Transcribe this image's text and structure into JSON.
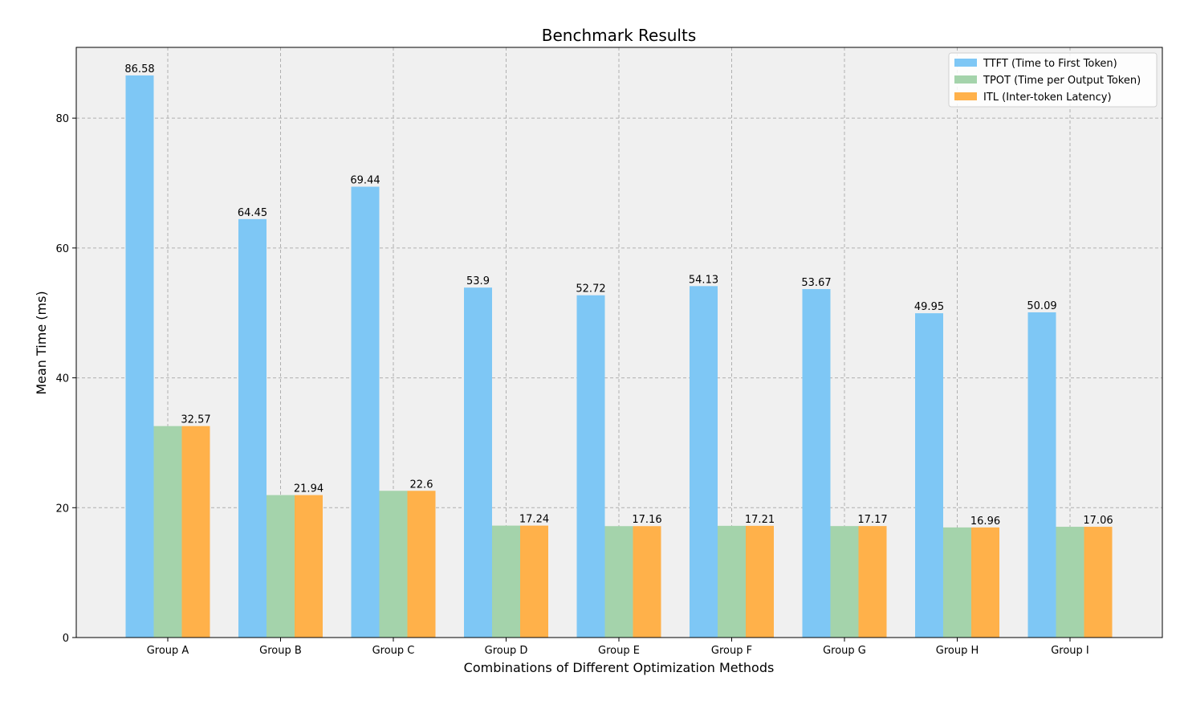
{
  "chart_data": {
    "type": "bar",
    "title": "Benchmark Results",
    "xlabel": "Combinations of Different Optimization Methods",
    "ylabel": "Mean Time (ms)",
    "ylim": [
      0,
      90.9
    ],
    "yticks": [
      0,
      20,
      40,
      60,
      80
    ],
    "grid": true,
    "legend_position": "top-right",
    "categories": [
      "Group A",
      "Group B",
      "Group C",
      "Group D",
      "Group E",
      "Group F",
      "Group G",
      "Group H",
      "Group I"
    ],
    "series": [
      {
        "name": "TTFT (Time to First Token)",
        "color": "#7ec7f5",
        "values": [
          86.58,
          64.45,
          69.44,
          53.9,
          52.72,
          54.13,
          53.67,
          49.95,
          50.09
        ],
        "labels": [
          "86.58",
          "64.45",
          "69.44",
          "53.9",
          "52.72",
          "54.13",
          "53.67",
          "49.95",
          "50.09"
        ]
      },
      {
        "name": "TPOT (Time per Output Token)",
        "color": "#a4d3ab",
        "values": [
          32.57,
          21.94,
          22.6,
          17.24,
          17.16,
          17.21,
          17.17,
          16.96,
          17.06
        ],
        "labels": []
      },
      {
        "name": "ITL (Inter-token Latency)",
        "color": "#ffb14a",
        "values": [
          32.57,
          21.94,
          22.6,
          17.24,
          17.16,
          17.21,
          17.17,
          16.96,
          17.06
        ],
        "labels": [
          "32.57",
          "21.94",
          "22.6",
          "17.24",
          "17.16",
          "17.21",
          "17.17",
          "16.96",
          "17.06"
        ]
      }
    ]
  }
}
